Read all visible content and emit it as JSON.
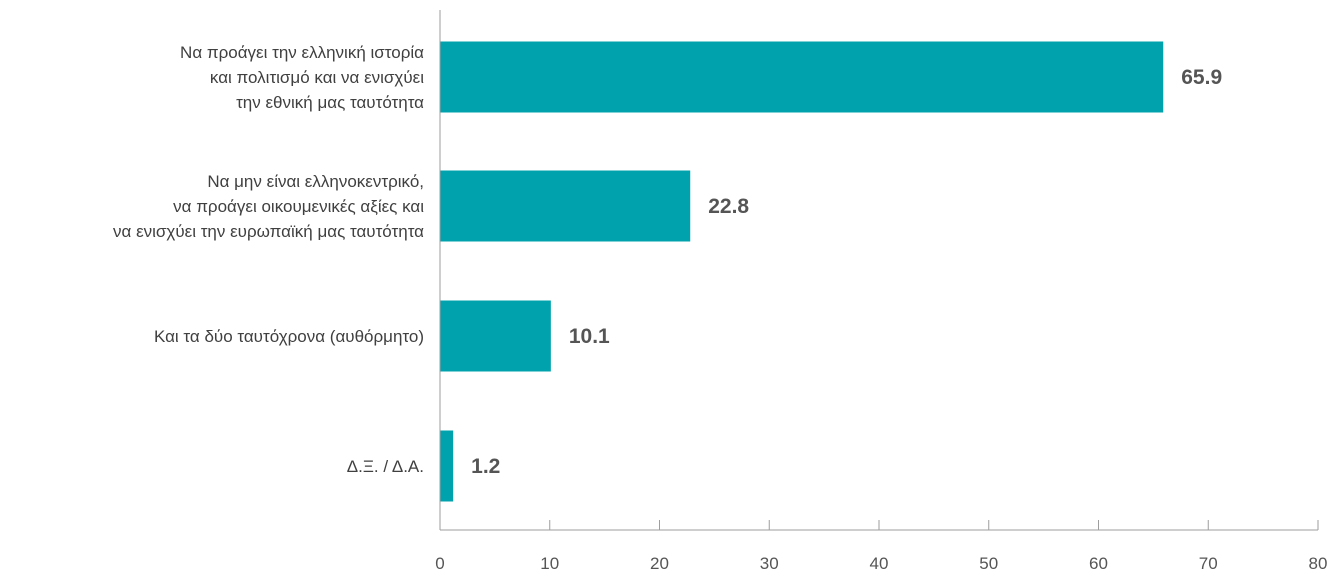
{
  "chart_data": {
    "type": "bar",
    "orientation": "horizontal",
    "title": "",
    "xlabel": "",
    "ylabel": "",
    "categories": [
      "Να προάγει την ελληνική ιστορία και πολιτισμό και να ενισχύει την εθνική μας ταυτότητα",
      "Να μην είναι ελληνοκεντρικό, να προάγει οικουμενικές αξίες και να ενισχύει την ευρωπαϊκή μας ταυτότητα",
      "Και τα δύο ταυτόχρονα (αυθόρμητο)",
      "Δ.Ξ. / Δ.Α."
    ],
    "category_lines": [
      [
        "Να προάγει την ελληνική ιστορία",
        "και πολιτισμό και να ενισχύει",
        "την εθνική μας ταυτότητα"
      ],
      [
        "Να μην είναι ελληνοκεντρικό,",
        "να προάγει οικουμενικές αξίες και",
        "να ενισχύει την ευρωπαϊκή μας ταυτότητα"
      ],
      [
        "Και τα δύο ταυτόχρονα (αυθόρμητο)"
      ],
      [
        "Δ.Ξ. / Δ.Α."
      ]
    ],
    "values": [
      65.9,
      22.8,
      10.1,
      1.2
    ],
    "value_labels": [
      "65.9",
      "22.8",
      "10.1",
      "1.2"
    ],
    "xlim": [
      0,
      80
    ],
    "xticks": [
      0,
      10,
      20,
      30,
      40,
      50,
      60,
      70,
      80
    ],
    "xtick_labels": [
      "0",
      "10",
      "20",
      "30",
      "40",
      "50",
      "60",
      "70",
      "80"
    ],
    "grid": false,
    "legend": "none",
    "colors": {
      "bar": "#00A3AD",
      "axis": "#9E9E9E",
      "value_text": "#555555",
      "label_text": "#404040"
    }
  }
}
